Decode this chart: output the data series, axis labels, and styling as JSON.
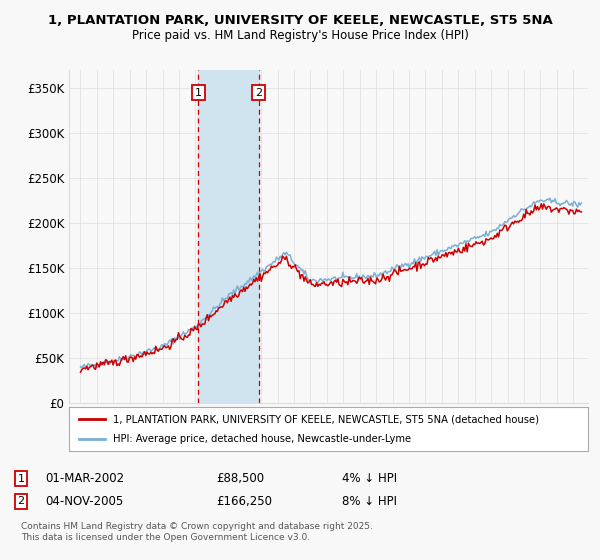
{
  "title": "1, PLANTATION PARK, UNIVERSITY OF KEELE, NEWCASTLE, ST5 5NA",
  "subtitle": "Price paid vs. HM Land Registry's House Price Index (HPI)",
  "ylim": [
    0,
    370000
  ],
  "yticks": [
    0,
    50000,
    100000,
    150000,
    200000,
    250000,
    300000,
    350000
  ],
  "ytick_labels": [
    "£0",
    "£50K",
    "£100K",
    "£150K",
    "£200K",
    "£250K",
    "£300K",
    "£350K"
  ],
  "transactions": [
    {
      "label": "1",
      "date_num": 2002.17,
      "price": 88500,
      "note": "01-MAR-2002",
      "amount": "£88,500",
      "diff": "4% ↓ HPI"
    },
    {
      "label": "2",
      "date_num": 2005.84,
      "price": 166250,
      "note": "04-NOV-2005",
      "amount": "£166,250",
      "diff": "8% ↓ HPI"
    }
  ],
  "legend_line1": "1, PLANTATION PARK, UNIVERSITY OF KEELE, NEWCASTLE, ST5 5NA (detached house)",
  "legend_line2": "HPI: Average price, detached house, Newcastle-under-Lyme",
  "footer1": "Contains HM Land Registry data © Crown copyright and database right 2025.",
  "footer2": "This data is licensed under the Open Government Licence v3.0.",
  "line_color_red": "#cc0000",
  "line_color_blue": "#7ab0d4",
  "shade_color": "#d0e4f0",
  "background_color": "#f8f8f8",
  "grid_color": "#dddddd",
  "transaction_box_color": "#cc0000"
}
